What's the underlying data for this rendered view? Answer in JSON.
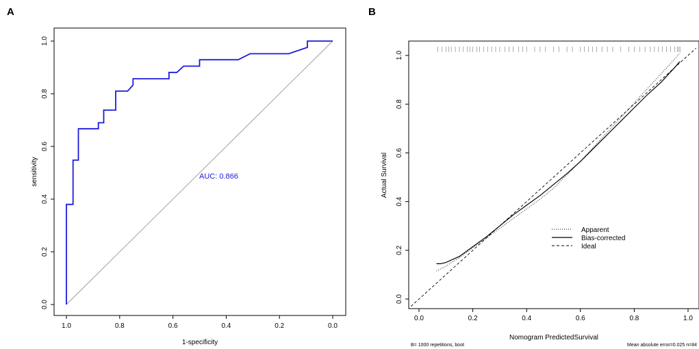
{
  "chart_data": [
    {
      "type": "line",
      "panel": "A",
      "title": "",
      "xlabel": "1-specificity",
      "ylabel": "sensitivity",
      "xlim": [
        1.0,
        0.0
      ],
      "ylim": [
        0.0,
        1.0
      ],
      "x_ticks": [
        "1.0",
        "0.8",
        "0.6",
        "0.4",
        "0.2",
        "0.0"
      ],
      "y_ticks": [
        "0.0",
        "0.2",
        "0.4",
        "0.6",
        "0.8",
        "1.0"
      ],
      "annotation": "AUC: 0.866",
      "roc_color": "#1a1adb",
      "diagonal_color": "#999999",
      "series": [
        {
          "name": "ROC",
          "x": [
            1.0,
            1.0,
            0.975,
            0.975,
            0.955,
            0.955,
            0.88,
            0.88,
            0.86,
            0.86,
            0.815,
            0.815,
            0.77,
            0.75,
            0.75,
            0.615,
            0.615,
            0.585,
            0.56,
            0.56,
            0.5,
            0.5,
            0.355,
            0.31,
            0.31,
            0.165,
            0.095,
            0.095,
            0.0
          ],
          "y": [
            0.0,
            0.38,
            0.38,
            0.548,
            0.548,
            0.667,
            0.667,
            0.69,
            0.69,
            0.738,
            0.738,
            0.81,
            0.81,
            0.833,
            0.857,
            0.857,
            0.881,
            0.881,
            0.905,
            0.905,
            0.905,
            0.929,
            0.929,
            0.952,
            0.952,
            0.952,
            0.976,
            1.0,
            1.0
          ]
        },
        {
          "name": "Reference",
          "x": [
            1.0,
            0.0
          ],
          "y": [
            0.0,
            1.0
          ]
        }
      ]
    },
    {
      "type": "line",
      "panel": "B",
      "title": "",
      "xlabel": "Nomogram PredictedSurvival",
      "ylabel": "Actual Survival",
      "xlim": [
        -0.03,
        1.03
      ],
      "ylim": [
        -0.03,
        1.03
      ],
      "x_ticks": [
        "0.0",
        "0.2",
        "0.4",
        "0.6",
        "0.8",
        "1.0"
      ],
      "y_ticks": [
        "0.0",
        "0.2",
        "0.4",
        "0.6",
        "0.8",
        "1.0"
      ],
      "legend": [
        "Apparent",
        "Bias-corrected",
        "Ideal"
      ],
      "legend_position": "bottom-right",
      "footnote_left": "B= 1000 repetitions, boot",
      "footnote_right": "Mean absolute error=0.025 n=84",
      "rug_x": [
        0.07,
        0.085,
        0.1,
        0.11,
        0.12,
        0.135,
        0.15,
        0.165,
        0.18,
        0.19,
        0.2,
        0.215,
        0.225,
        0.24,
        0.255,
        0.27,
        0.285,
        0.3,
        0.32,
        0.335,
        0.35,
        0.37,
        0.385,
        0.4,
        0.43,
        0.45,
        0.47,
        0.5,
        0.52,
        0.55,
        0.57,
        0.6,
        0.615,
        0.63,
        0.645,
        0.66,
        0.68,
        0.7,
        0.72,
        0.75,
        0.78,
        0.8,
        0.82,
        0.84,
        0.86,
        0.875,
        0.89,
        0.905,
        0.92,
        0.935,
        0.95,
        0.96,
        0.965,
        0.97
      ],
      "series": [
        {
          "name": "Apparent",
          "x": [
            0.065,
            0.1,
            0.15,
            0.2,
            0.25,
            0.3,
            0.35,
            0.4,
            0.45,
            0.5,
            0.55,
            0.6,
            0.65,
            0.7,
            0.75,
            0.8,
            0.85,
            0.9,
            0.95,
            0.97
          ],
          "y": [
            0.115,
            0.135,
            0.17,
            0.21,
            0.25,
            0.29,
            0.33,
            0.37,
            0.41,
            0.455,
            0.51,
            0.565,
            0.625,
            0.685,
            0.745,
            0.805,
            0.865,
            0.925,
            0.985,
            1.01
          ]
        },
        {
          "name": "Bias-corrected",
          "x": [
            0.065,
            0.08,
            0.1,
            0.15,
            0.2,
            0.25,
            0.3,
            0.35,
            0.4,
            0.45,
            0.5,
            0.55,
            0.6,
            0.65,
            0.7,
            0.75,
            0.8,
            0.85,
            0.9,
            0.95,
            0.97
          ],
          "y": [
            0.145,
            0.145,
            0.15,
            0.175,
            0.215,
            0.255,
            0.3,
            0.345,
            0.385,
            0.425,
            0.47,
            0.515,
            0.565,
            0.62,
            0.675,
            0.73,
            0.785,
            0.84,
            0.89,
            0.95,
            0.975
          ]
        },
        {
          "name": "Ideal",
          "x": [
            -0.03,
            1.03
          ],
          "y": [
            -0.03,
            1.03
          ]
        }
      ]
    }
  ]
}
